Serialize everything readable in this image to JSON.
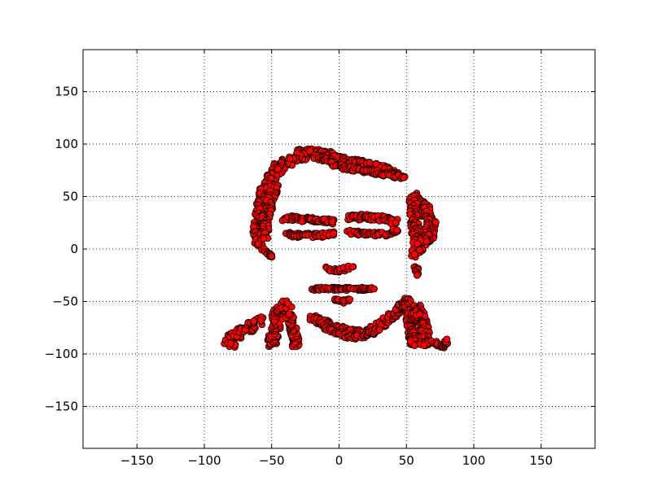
{
  "chart_data": {
    "type": "scatter",
    "title": "",
    "xlabel": "",
    "ylabel": "",
    "xlim": [
      -190,
      190
    ],
    "ylim": [
      -190,
      190
    ],
    "xticks": [
      -150,
      -100,
      -50,
      0,
      50,
      100,
      150
    ],
    "yticks": [
      -150,
      -100,
      -50,
      0,
      50,
      100,
      150
    ],
    "xtick_labels": [
      "−150",
      "−100",
      "−50",
      "0",
      "50",
      "100",
      "150"
    ],
    "ytick_labels": [
      "−150",
      "−100",
      "−50",
      "0",
      "50",
      "100",
      "150"
    ],
    "grid": true,
    "marker_color": "#ff0000",
    "marker_edge_color": "#000000",
    "strokes": [
      {
        "part": "hair-top",
        "points": [
          [
            -30,
            92
          ],
          [
            -22,
            93
          ],
          [
            -15,
            92
          ],
          [
            -8,
            90
          ],
          [
            0,
            86
          ],
          [
            8,
            83
          ],
          [
            15,
            82
          ],
          [
            22,
            80
          ],
          [
            30,
            78
          ],
          [
            38,
            74
          ],
          [
            45,
            70
          ]
        ],
        "spread": 3
      },
      {
        "part": "hair-top-2",
        "points": [
          [
            -18,
            88
          ],
          [
            -10,
            85
          ],
          [
            -5,
            82
          ],
          [
            2,
            78
          ],
          [
            12,
            76
          ],
          [
            22,
            74
          ],
          [
            30,
            72
          ],
          [
            40,
            70
          ],
          [
            48,
            68
          ]
        ],
        "spread": 2
      },
      {
        "part": "hair-left",
        "points": [
          [
            -25,
            90
          ],
          [
            -35,
            86
          ],
          [
            -43,
            80
          ],
          [
            -48,
            72
          ],
          [
            -52,
            64
          ],
          [
            -55,
            55
          ],
          [
            -57,
            45
          ],
          [
            -58,
            35
          ],
          [
            -59,
            25
          ],
          [
            -60,
            15
          ],
          [
            -60,
            5
          ]
        ],
        "spread": 4
      },
      {
        "part": "hair-left-inner",
        "points": [
          [
            -48,
            60
          ],
          [
            -50,
            50
          ],
          [
            -52,
            40
          ],
          [
            -54,
            30
          ],
          [
            -55,
            20
          ],
          [
            -56,
            10
          ]
        ],
        "spread": 3
      },
      {
        "part": "left-bottom",
        "points": [
          [
            -56,
            0
          ],
          [
            -53,
            -4
          ],
          [
            -50,
            -7
          ]
        ],
        "spread": 1.5
      },
      {
        "part": "right-side",
        "points": [
          [
            55,
            50
          ],
          [
            58,
            45
          ],
          [
            62,
            40
          ],
          [
            65,
            35
          ],
          [
            67,
            30
          ],
          [
            68,
            25
          ],
          [
            68,
            20
          ],
          [
            67,
            15
          ],
          [
            65,
            10
          ],
          [
            62,
            5
          ],
          [
            58,
            0
          ],
          [
            56,
            -5
          ]
        ],
        "spread": 4
      },
      {
        "part": "right-side-inner",
        "points": [
          [
            55,
            45
          ],
          [
            55,
            35
          ],
          [
            56,
            25
          ],
          [
            57,
            15
          ],
          [
            58,
            5
          ]
        ],
        "spread": 3
      },
      {
        "part": "right-ear",
        "points": [
          [
            57,
            -18
          ],
          [
            58,
            -22
          ],
          [
            58,
            -25
          ]
        ],
        "spread": 1.5
      },
      {
        "part": "left-eye",
        "points": [
          [
            -40,
            29
          ],
          [
            -35,
            29
          ],
          [
            -30,
            29
          ],
          [
            -25,
            28
          ],
          [
            -20,
            28
          ],
          [
            -15,
            28
          ],
          [
            -10,
            27
          ],
          [
            -5,
            26
          ]
        ],
        "spread": 2.5
      },
      {
        "part": "left-eye-lower",
        "points": [
          [
            -38,
            14
          ],
          [
            -32,
            13
          ],
          [
            -26,
            13
          ],
          [
            -20,
            13
          ],
          [
            -14,
            13
          ],
          [
            -8,
            14
          ],
          [
            -4,
            15
          ]
        ],
        "spread": 2
      },
      {
        "part": "right-eye",
        "points": [
          [
            8,
            30
          ],
          [
            14,
            30
          ],
          [
            20,
            31
          ],
          [
            26,
            30
          ],
          [
            32,
            29
          ],
          [
            38,
            28
          ],
          [
            42,
            25
          ]
        ],
        "spread": 2.5
      },
      {
        "part": "right-eye-lower",
        "points": [
          [
            8,
            16
          ],
          [
            14,
            15
          ],
          [
            20,
            14
          ],
          [
            26,
            14
          ],
          [
            32,
            14
          ],
          [
            38,
            15
          ],
          [
            43,
            18
          ]
        ],
        "spread": 2
      },
      {
        "part": "nose",
        "points": [
          [
            -10,
            -18
          ],
          [
            -5,
            -20
          ],
          [
            0,
            -20
          ],
          [
            5,
            -19
          ],
          [
            10,
            -17
          ]
        ],
        "spread": 2
      },
      {
        "part": "mouth",
        "points": [
          [
            -20,
            -38
          ],
          [
            -12,
            -38
          ],
          [
            -4,
            -38
          ],
          [
            4,
            -38
          ],
          [
            12,
            -38
          ],
          [
            20,
            -38
          ],
          [
            26,
            -38
          ]
        ],
        "spread": 1.5
      },
      {
        "part": "chin",
        "points": [
          [
            -3,
            -48
          ],
          [
            2,
            -50
          ],
          [
            8,
            -48
          ]
        ],
        "spread": 1.5
      },
      {
        "part": "left-shoulder",
        "points": [
          [
            -82,
            -92
          ],
          [
            -80,
            -86
          ],
          [
            -76,
            -81
          ],
          [
            -70,
            -76
          ],
          [
            -64,
            -72
          ],
          [
            -58,
            -68
          ]
        ],
        "spread": 4
      },
      {
        "part": "left-arm",
        "points": [
          [
            -50,
            -92
          ],
          [
            -49,
            -82
          ],
          [
            -47,
            -72
          ],
          [
            -45,
            -62
          ],
          [
            -42,
            -55
          ],
          [
            -38,
            -52
          ]
        ],
        "spread": 4
      },
      {
        "part": "left-arm-2",
        "points": [
          [
            -32,
            -92
          ],
          [
            -33,
            -82
          ],
          [
            -35,
            -72
          ],
          [
            -37,
            -62
          ]
        ],
        "spread": 3
      },
      {
        "part": "collar",
        "points": [
          [
            -20,
            -66
          ],
          [
            -12,
            -70
          ],
          [
            -4,
            -75
          ],
          [
            4,
            -78
          ],
          [
            12,
            -80
          ],
          [
            20,
            -80
          ],
          [
            28,
            -75
          ],
          [
            35,
            -68
          ],
          [
            42,
            -60
          ],
          [
            48,
            -53
          ],
          [
            52,
            -48
          ]
        ],
        "spread": 3
      },
      {
        "part": "collar-lower",
        "points": [
          [
            -10,
            -74
          ],
          [
            -2,
            -80
          ],
          [
            6,
            -83
          ],
          [
            14,
            -84
          ],
          [
            22,
            -82
          ],
          [
            30,
            -77
          ]
        ],
        "spread": 2
      },
      {
        "part": "right-body",
        "points": [
          [
            50,
            -48
          ],
          [
            52,
            -58
          ],
          [
            53,
            -68
          ],
          [
            54,
            -78
          ],
          [
            55,
            -88
          ],
          [
            56,
            -92
          ]
        ],
        "spread": 3
      },
      {
        "part": "right-body-2",
        "points": [
          [
            58,
            -56
          ],
          [
            62,
            -66
          ],
          [
            64,
            -76
          ],
          [
            64,
            -86
          ],
          [
            63,
            -92
          ]
        ],
        "spread": 3
      },
      {
        "part": "right-body-3",
        "points": [
          [
            54,
            -60
          ],
          [
            60,
            -62
          ]
        ],
        "spread": 2
      },
      {
        "part": "right-hand",
        "points": [
          [
            70,
            -89
          ],
          [
            75,
            -92
          ],
          [
            78,
            -93
          ],
          [
            80,
            -86
          ]
        ],
        "spread": 1.5
      }
    ]
  }
}
